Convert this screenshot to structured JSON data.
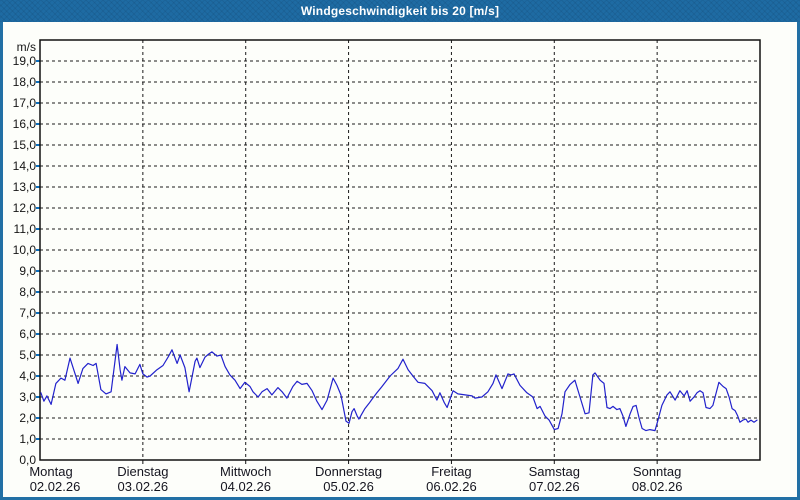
{
  "window": {
    "title": "Windgeschwindigkeit bis 20 [m/s]"
  },
  "colors": {
    "frame_blue": "#2270a5",
    "titlebar_blue": "#1e6ba3",
    "panel_bg": "#fdfefa",
    "grid_black": "#1a1a1a",
    "y_tick_blue": "#0a6ebd",
    "line_blue": "#2222cc",
    "title_text": "#ffffff",
    "label_text": "#151515"
  },
  "chart_data": {
    "type": "line",
    "title": "Windgeschwindigkeit bis 20 [m/s]",
    "ylabel": "m/s",
    "xlabel": "",
    "ylim": [
      0,
      20
    ],
    "ytick_step": 1.0,
    "decimal_separator": ",",
    "grid": "dashed",
    "legend": "none",
    "x_axis": {
      "unit": "days",
      "span_hours": 168,
      "categories": [
        {
          "weekday": "Montag",
          "date": "02.02.26"
        },
        {
          "weekday": "Dienstag",
          "date": "03.02.26"
        },
        {
          "weekday": "Mittwoch",
          "date": "04.02.26"
        },
        {
          "weekday": "Donnerstag",
          "date": "05.02.26"
        },
        {
          "weekday": "Freitag",
          "date": "06.02.26"
        },
        {
          "weekday": "Samstag",
          "date": "07.02.26"
        },
        {
          "weekday": "Sonntag",
          "date": "08.02.26"
        }
      ]
    },
    "series": [
      {
        "name": "Windgeschwindigkeit",
        "unit": "m/s",
        "color": "#2222cc",
        "points": [
          [
            0.2,
            3.2
          ],
          [
            0.9,
            2.8
          ],
          [
            1.6,
            3.05
          ],
          [
            2.6,
            2.65
          ],
          [
            3.7,
            3.65
          ],
          [
            4.9,
            3.9
          ],
          [
            5.8,
            3.8
          ],
          [
            7.0,
            4.85
          ],
          [
            8.2,
            4.1
          ],
          [
            8.9,
            3.65
          ],
          [
            10.0,
            4.35
          ],
          [
            11.2,
            4.6
          ],
          [
            12.4,
            4.5
          ],
          [
            13.1,
            4.6
          ],
          [
            14.2,
            3.35
          ],
          [
            15.4,
            3.15
          ],
          [
            16.6,
            3.25
          ],
          [
            18.0,
            5.5
          ],
          [
            18.7,
            4.3
          ],
          [
            19.1,
            3.8
          ],
          [
            19.8,
            4.45
          ],
          [
            21.0,
            4.15
          ],
          [
            22.2,
            4.1
          ],
          [
            23.3,
            4.55
          ],
          [
            24.0,
            4.1
          ],
          [
            25.0,
            3.95
          ],
          [
            25.7,
            4.0
          ],
          [
            27.3,
            4.3
          ],
          [
            28.7,
            4.5
          ],
          [
            29.9,
            4.9
          ],
          [
            30.8,
            5.25
          ],
          [
            32.0,
            4.6
          ],
          [
            32.7,
            5.0
          ],
          [
            33.8,
            4.4
          ],
          [
            34.8,
            3.25
          ],
          [
            36.2,
            4.7
          ],
          [
            36.6,
            4.85
          ],
          [
            37.3,
            4.4
          ],
          [
            38.5,
            4.9
          ],
          [
            39.4,
            5.05
          ],
          [
            40.1,
            5.15
          ],
          [
            41.3,
            4.95
          ],
          [
            42.2,
            5.0
          ],
          [
            43.2,
            4.45
          ],
          [
            44.3,
            4.05
          ],
          [
            45.5,
            3.8
          ],
          [
            46.7,
            3.4
          ],
          [
            47.8,
            3.7
          ],
          [
            49.0,
            3.5
          ],
          [
            49.7,
            3.25
          ],
          [
            50.9,
            3.0
          ],
          [
            51.8,
            3.25
          ],
          [
            53.0,
            3.4
          ],
          [
            54.1,
            3.1
          ],
          [
            55.5,
            3.45
          ],
          [
            56.5,
            3.25
          ],
          [
            57.6,
            2.95
          ],
          [
            59.0,
            3.5
          ],
          [
            60.0,
            3.75
          ],
          [
            61.1,
            3.6
          ],
          [
            62.3,
            3.65
          ],
          [
            63.5,
            3.3
          ],
          [
            64.6,
            2.8
          ],
          [
            65.8,
            2.4
          ],
          [
            67.0,
            2.85
          ],
          [
            68.4,
            3.9
          ],
          [
            69.3,
            3.55
          ],
          [
            70.2,
            3.1
          ],
          [
            71.4,
            1.85
          ],
          [
            72.1,
            1.75
          ],
          [
            72.8,
            2.3
          ],
          [
            73.3,
            2.45
          ],
          [
            74.0,
            2.1
          ],
          [
            74.4,
            1.95
          ],
          [
            75.8,
            2.45
          ],
          [
            76.8,
            2.7
          ],
          [
            77.5,
            2.9
          ],
          [
            78.6,
            3.2
          ],
          [
            79.8,
            3.5
          ],
          [
            81.7,
            4.0
          ],
          [
            83.5,
            4.35
          ],
          [
            84.7,
            4.8
          ],
          [
            85.9,
            4.3
          ],
          [
            87.0,
            4.0
          ],
          [
            88.2,
            3.7
          ],
          [
            89.8,
            3.65
          ],
          [
            91.5,
            3.3
          ],
          [
            92.6,
            2.85
          ],
          [
            93.3,
            3.2
          ],
          [
            94.3,
            2.75
          ],
          [
            95.0,
            2.5
          ],
          [
            96.4,
            3.3
          ],
          [
            97.5,
            3.15
          ],
          [
            99.2,
            3.1
          ],
          [
            100.8,
            3.05
          ],
          [
            101.5,
            2.95
          ],
          [
            103.1,
            3.0
          ],
          [
            104.5,
            3.25
          ],
          [
            105.7,
            3.65
          ],
          [
            106.4,
            4.05
          ],
          [
            107.8,
            3.4
          ],
          [
            109.2,
            4.1
          ],
          [
            109.9,
            4.05
          ],
          [
            110.6,
            4.1
          ],
          [
            112.0,
            3.55
          ],
          [
            113.6,
            3.2
          ],
          [
            115.0,
            3.0
          ],
          [
            116.0,
            2.45
          ],
          [
            116.7,
            2.55
          ],
          [
            117.8,
            2.1
          ],
          [
            118.8,
            1.9
          ],
          [
            120.0,
            1.45
          ],
          [
            120.9,
            1.5
          ],
          [
            121.8,
            2.2
          ],
          [
            122.5,
            3.25
          ],
          [
            123.7,
            3.6
          ],
          [
            124.8,
            3.8
          ],
          [
            126.0,
            3.0
          ],
          [
            127.2,
            2.2
          ],
          [
            128.1,
            2.25
          ],
          [
            129.0,
            4.05
          ],
          [
            129.5,
            4.15
          ],
          [
            130.7,
            3.8
          ],
          [
            131.6,
            3.65
          ],
          [
            132.3,
            2.5
          ],
          [
            133.0,
            2.45
          ],
          [
            133.7,
            2.55
          ],
          [
            134.6,
            2.4
          ],
          [
            135.3,
            2.45
          ],
          [
            136.0,
            2.1
          ],
          [
            136.7,
            1.6
          ],
          [
            137.7,
            2.2
          ],
          [
            138.4,
            2.55
          ],
          [
            139.1,
            2.6
          ],
          [
            139.8,
            2.0
          ],
          [
            140.5,
            1.5
          ],
          [
            141.4,
            1.4
          ],
          [
            142.3,
            1.45
          ],
          [
            143.5,
            1.4
          ],
          [
            144.2,
            1.9
          ],
          [
            145.1,
            2.6
          ],
          [
            146.3,
            3.1
          ],
          [
            147.0,
            3.25
          ],
          [
            148.2,
            2.85
          ],
          [
            149.3,
            3.3
          ],
          [
            150.3,
            3.05
          ],
          [
            151.0,
            3.3
          ],
          [
            151.7,
            2.8
          ],
          [
            152.6,
            3.0
          ],
          [
            153.3,
            3.2
          ],
          [
            154.0,
            3.3
          ],
          [
            154.7,
            3.2
          ],
          [
            155.4,
            2.5
          ],
          [
            156.3,
            2.45
          ],
          [
            157.0,
            2.6
          ],
          [
            157.7,
            3.15
          ],
          [
            158.4,
            3.7
          ],
          [
            159.4,
            3.5
          ],
          [
            160.1,
            3.4
          ],
          [
            160.8,
            3.0
          ],
          [
            161.5,
            2.45
          ],
          [
            162.2,
            2.35
          ],
          [
            162.8,
            2.1
          ],
          [
            163.3,
            1.8
          ],
          [
            164.0,
            1.9
          ],
          [
            164.7,
            1.95
          ],
          [
            165.2,
            1.8
          ],
          [
            165.9,
            1.9
          ],
          [
            166.6,
            1.8
          ],
          [
            167.3,
            1.9
          ]
        ]
      }
    ]
  }
}
